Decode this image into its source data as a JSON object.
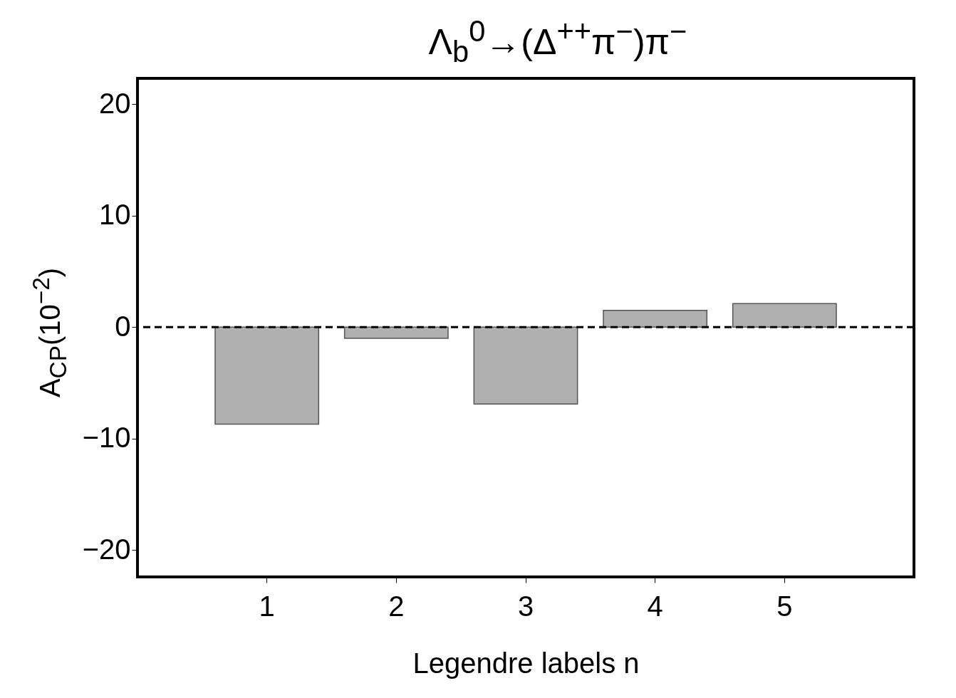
{
  "chart_data": {
    "type": "bar",
    "title": "Λ$_{b}$$^{0}$→(Δ$^{++}$π$^{−}$)π$^{−}$",
    "xlabel": "Legendre labels n",
    "ylabel": "A$_{CP}$(10$^{−2}$)",
    "categories": [
      "1",
      "2",
      "3",
      "4",
      "5"
    ],
    "values": [
      -8.7,
      -1.0,
      -6.9,
      1.5,
      2.1
    ],
    "color": "#b0b0b0",
    "ylim": [
      -22.4,
      22.3
    ],
    "yticks": [
      -20,
      -10,
      0,
      10,
      20
    ],
    "grid": false,
    "ref_lines": [
      {
        "axis": "y",
        "value": 0,
        "line_style": "dashed",
        "color": "#000000"
      }
    ]
  }
}
